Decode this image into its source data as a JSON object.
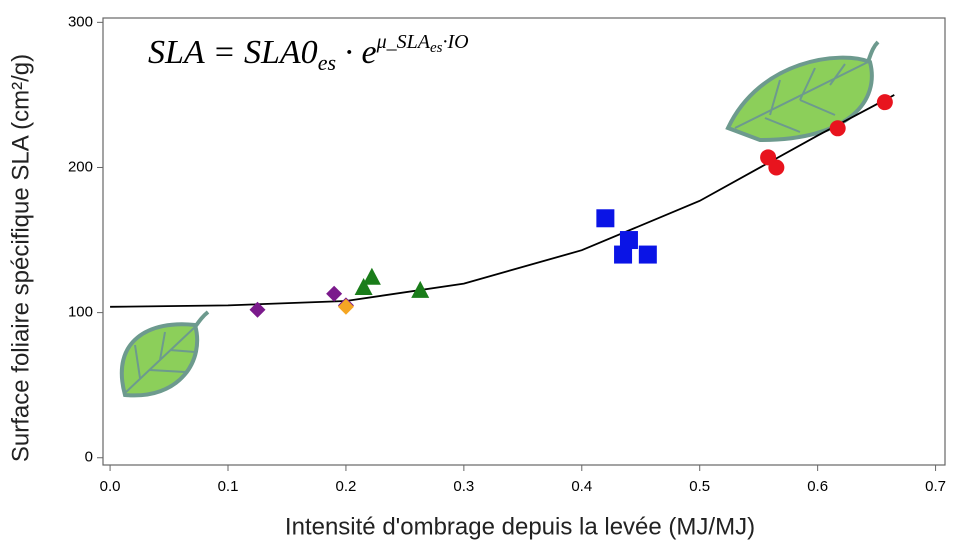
{
  "chart_data": {
    "type": "scatter",
    "equation": {
      "lhs": "SLA = SLA0",
      "sub": "es",
      "mid": " · e",
      "sup": "μ_SLA",
      "sup_sub": "es",
      "sup_end": "·IO"
    },
    "xlabel": "Intensité d'ombrage depuis la levée (MJ/MJ)",
    "ylabel": "Surface foliaire spécifique SLA (cm²/g)",
    "xlim": [
      -0.006,
      0.708
    ],
    "ylim": [
      -5,
      303
    ],
    "xticks": [
      {
        "value": 0,
        "label": "0.0"
      },
      0.1,
      0.2,
      0.3,
      0.4,
      0.5,
      0.6,
      0.7
    ],
    "yticks": [
      0,
      100,
      200,
      300
    ],
    "series": [
      {
        "type": "line",
        "color": "#000000",
        "x": [
          0,
          0.1,
          0.2,
          0.3,
          0.4,
          0.5,
          0.6,
          0.665
        ],
        "values": [
          104,
          105,
          108,
          120,
          143,
          177,
          222,
          250
        ]
      },
      {
        "marker": "diamond",
        "color": "#7b1a8c",
        "x": [
          0.125,
          0.19,
          0.2
        ],
        "values": [
          102,
          113,
          105
        ]
      },
      {
        "marker": "diamond",
        "color": "#f5a623",
        "x": [
          0.2
        ],
        "values": [
          104
        ]
      },
      {
        "marker": "triangle",
        "color": "#1a7d1a",
        "x": [
          0.215,
          0.222,
          0.263
        ],
        "values": [
          117,
          124,
          115
        ]
      },
      {
        "marker": "square",
        "color": "#0a14e6",
        "x": [
          0.42,
          0.44,
          0.435,
          0.456
        ],
        "values": [
          165,
          150,
          140,
          140
        ]
      },
      {
        "marker": "circle",
        "color": "#e8141e",
        "x": [
          0.558,
          0.565,
          0.617,
          0.657
        ],
        "values": [
          207,
          200,
          227,
          245
        ]
      }
    ]
  }
}
